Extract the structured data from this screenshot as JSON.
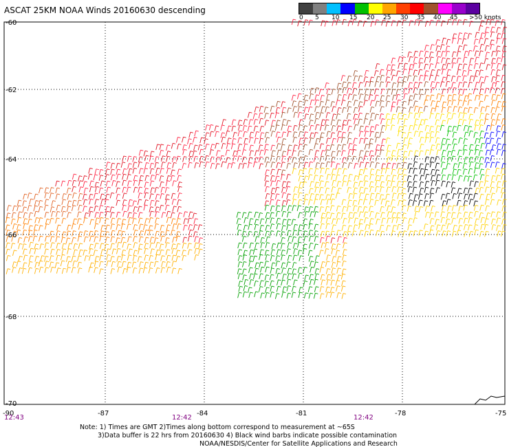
{
  "title": "ASCAT 25KM NOAA Winds 20160630 descending",
  "legend": {
    "labels": [
      "0",
      "5",
      "10",
      "15",
      "20",
      "25",
      "30",
      "35",
      "40",
      "45",
      ">50 knots"
    ],
    "colors": [
      "#404040",
      "#808080",
      "#00c0ff",
      "#0000ff",
      "#00c000",
      "#ffff00",
      "#ffa500",
      "#ff4000",
      "#ff0000",
      "#a0522d",
      "#ff00ff",
      "#9900cc",
      "#5b00a0"
    ]
  },
  "axes": {
    "lat_ticks": [
      "-60",
      "-62",
      "-64",
      "-66",
      "-68",
      "-70"
    ],
    "lon_ticks": [
      "-90",
      "-87",
      "-84",
      "-81",
      "-78",
      "-75"
    ],
    "time_labels": [
      "12:43",
      "12:42",
      "12:42"
    ]
  },
  "notes": {
    "line1": "Note: 1) Times are GMT 2)Times along bottom correspond to measurement at ~65S",
    "line2": "3)Data buffer is 22 hrs from 20160630 4) Black wind barbs indicate possible contamination",
    "line3": "NOAA/NESDIS/Center for Satellite Applications and Research"
  }
}
